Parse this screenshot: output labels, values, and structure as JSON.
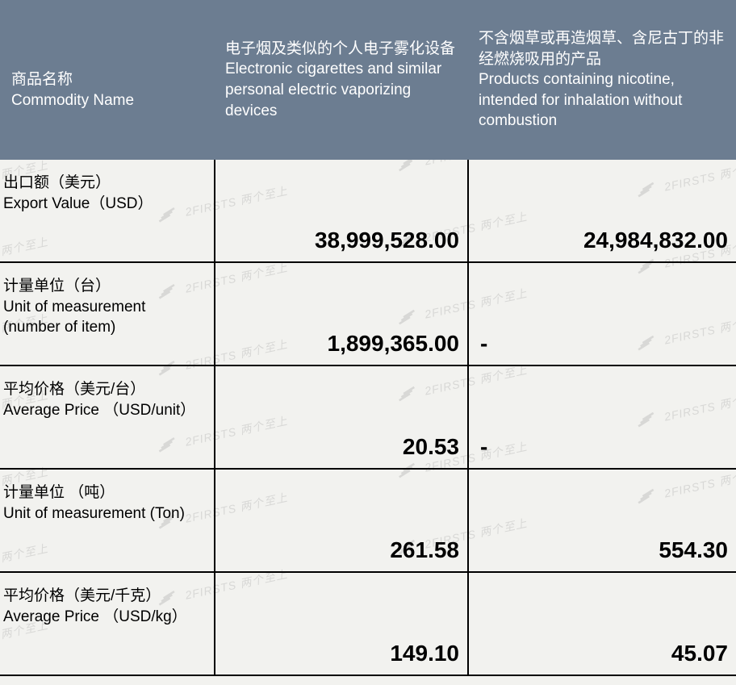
{
  "colors": {
    "header_bg": "#6c7d91",
    "header_text": "#ffffff",
    "body_bg": "#f2f2ef",
    "body_text": "#000000",
    "border": "#000000",
    "watermark": "rgba(170,170,170,0.35)"
  },
  "watermark": {
    "text": "2FIRSTS 两个至上"
  },
  "table": {
    "header": {
      "col0_zh": "商品名称",
      "col0_en": "Commodity Name",
      "col1_zh": "电子烟及类似的个人电子雾化设备",
      "col1_en": "Electronic cigarettes and similar personal electric vaporizing devices",
      "col2_zh": "不含烟草或再造烟草、含尼古丁的非经燃烧吸用的产品",
      "col2_en": "Products containing nicotine, intended for inhalation without combustion"
    },
    "rows": [
      {
        "label_zh": "出口额（美元）",
        "label_en": " Export Value（USD）",
        "col1": "38,999,528.00",
        "col1_align": "right",
        "col2": "24,984,832.00",
        "col2_align": "right"
      },
      {
        "label_zh": "计量单位（台）",
        "label_en": "Unit of measurement (number of item)",
        "col1": "1,899,365.00",
        "col1_align": "right",
        "col2": "-",
        "col2_align": "left"
      },
      {
        "label_zh": "平均价格（美元/台）",
        "label_en": "Average Price （USD/unit）",
        "col1": "20.53",
        "col1_align": "right",
        "col2": "-",
        "col2_align": "left"
      },
      {
        "label_zh": "计量单位 （吨）",
        "label_en": "Unit of measurement (Ton)",
        "col1": "261.58",
        "col1_align": "right",
        "col2": "554.30",
        "col2_align": "right"
      },
      {
        "label_zh": "平均价格（美元/千克）",
        "label_en": "Average Price （USD/kg）",
        "col1": "149.10",
        "col1_align": "right",
        "col2": "45.07",
        "col2_align": "right"
      }
    ]
  }
}
